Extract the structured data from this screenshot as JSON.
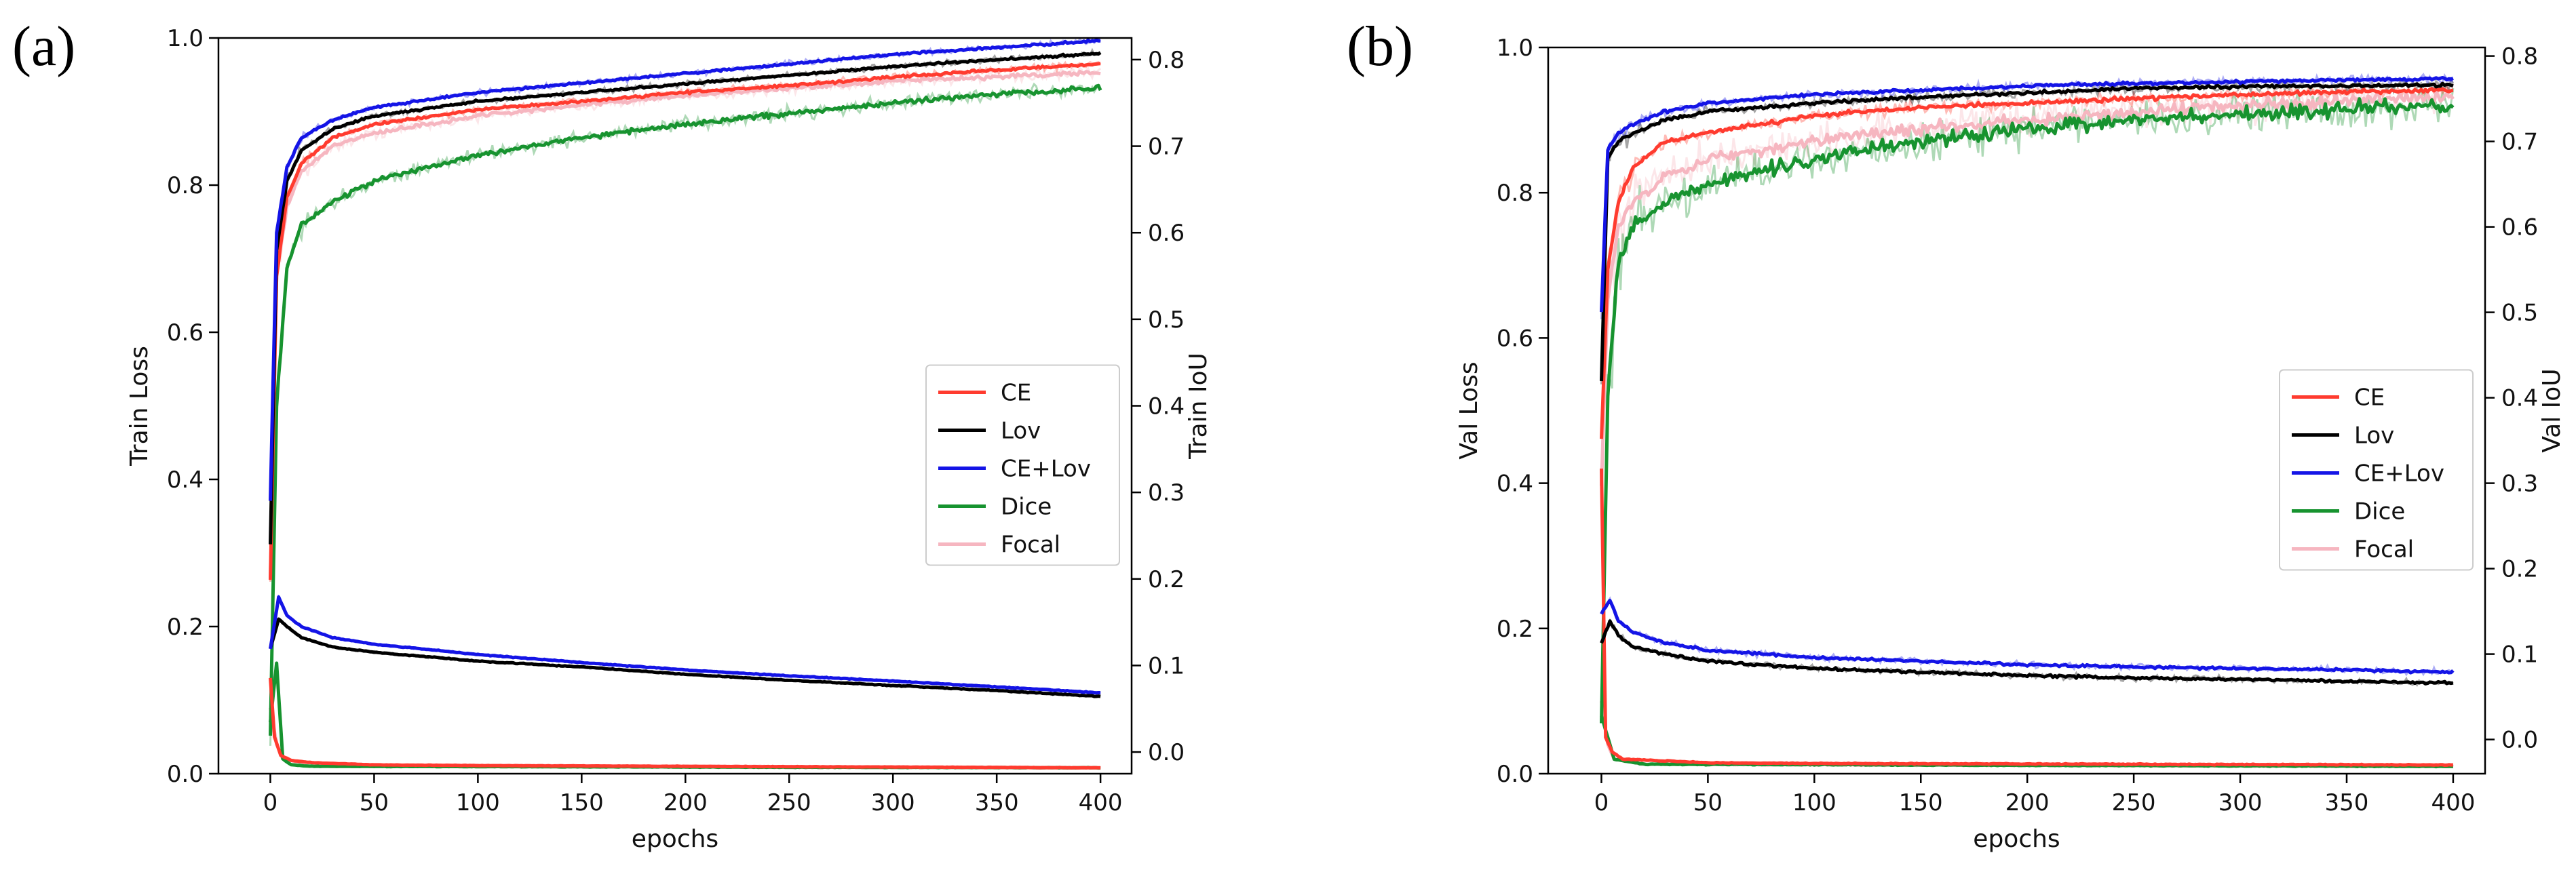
{
  "chart_data": [
    {
      "panel_label": "(a)",
      "type": "line",
      "xlabel": "epochs",
      "ylabel_left": "Train Loss",
      "ylabel_right": "Train IoU",
      "xlim": [
        -25,
        415
      ],
      "ylim_left": [
        0.0,
        1.0
      ],
      "ylim_right": [
        -0.025,
        0.825
      ],
      "xticks": [
        0,
        50,
        100,
        150,
        200,
        250,
        300,
        350,
        400
      ],
      "yticks_left": [
        "0.0",
        "0.2",
        "0.4",
        "0.6",
        "0.8",
        "1.0"
      ],
      "yticks_right": [
        "0.0",
        "0.1",
        "0.2",
        "0.3",
        "0.4",
        "0.5",
        "0.6",
        "0.7",
        "0.8"
      ],
      "legend": [
        "CE",
        "Lov",
        "CE+Lov",
        "Dice",
        "Focal"
      ],
      "legend_position": "center-right",
      "series": [
        {
          "name": "CE",
          "color": "#ff3b2f",
          "loss": [
            [
              0,
              0.13
            ],
            [
              2,
              0.05
            ],
            [
              5,
              0.025
            ],
            [
              10,
              0.018
            ],
            [
              20,
              0.015
            ],
            [
              50,
              0.012
            ],
            [
              100,
              0.011
            ],
            [
              200,
              0.01
            ],
            [
              300,
              0.009
            ],
            [
              400,
              0.008
            ]
          ],
          "iou": [
            [
              0,
              0.2
            ],
            [
              3,
              0.55
            ],
            [
              8,
              0.64
            ],
            [
              15,
              0.68
            ],
            [
              30,
              0.71
            ],
            [
              50,
              0.725
            ],
            [
              100,
              0.742
            ],
            [
              150,
              0.752
            ],
            [
              200,
              0.762
            ],
            [
              250,
              0.77
            ],
            [
              300,
              0.78
            ],
            [
              350,
              0.788
            ],
            [
              400,
              0.795
            ]
          ]
        },
        {
          "name": "Lov",
          "color": "#000000",
          "loss": [
            [
              0,
              0.17
            ],
            [
              4,
              0.21
            ],
            [
              8,
              0.2
            ],
            [
              15,
              0.185
            ],
            [
              30,
              0.172
            ],
            [
              50,
              0.165
            ],
            [
              100,
              0.153
            ],
            [
              150,
              0.145
            ],
            [
              200,
              0.135
            ],
            [
              250,
              0.127
            ],
            [
              300,
              0.12
            ],
            [
              350,
              0.113
            ],
            [
              400,
              0.105
            ]
          ],
          "iou": [
            [
              0,
              0.24
            ],
            [
              3,
              0.58
            ],
            [
              8,
              0.66
            ],
            [
              15,
              0.695
            ],
            [
              30,
              0.72
            ],
            [
              50,
              0.735
            ],
            [
              100,
              0.752
            ],
            [
              150,
              0.762
            ],
            [
              200,
              0.772
            ],
            [
              250,
              0.782
            ],
            [
              300,
              0.792
            ],
            [
              350,
              0.8
            ],
            [
              400,
              0.807
            ]
          ]
        },
        {
          "name": "CE+Lov",
          "color": "#1414e6",
          "loss": [
            [
              0,
              0.17
            ],
            [
              4,
              0.24
            ],
            [
              8,
              0.215
            ],
            [
              15,
              0.2
            ],
            [
              30,
              0.185
            ],
            [
              50,
              0.176
            ],
            [
              100,
              0.162
            ],
            [
              150,
              0.151
            ],
            [
              200,
              0.141
            ],
            [
              250,
              0.133
            ],
            [
              300,
              0.126
            ],
            [
              350,
              0.118
            ],
            [
              400,
              0.11
            ]
          ],
          "iou": [
            [
              0,
              0.29
            ],
            [
              3,
              0.6
            ],
            [
              8,
              0.675
            ],
            [
              15,
              0.71
            ],
            [
              30,
              0.73
            ],
            [
              50,
              0.745
            ],
            [
              100,
              0.762
            ],
            [
              150,
              0.773
            ],
            [
              200,
              0.784
            ],
            [
              250,
              0.795
            ],
            [
              300,
              0.806
            ],
            [
              350,
              0.814
            ],
            [
              400,
              0.822
            ]
          ]
        },
        {
          "name": "Dice",
          "color": "#17932f",
          "loss": [
            [
              0,
              0.07
            ],
            [
              3,
              0.15
            ],
            [
              6,
              0.02
            ],
            [
              10,
              0.012
            ],
            [
              20,
              0.01
            ],
            [
              400,
              0.008
            ]
          ],
          "iou": [
            [
              0,
              0.02
            ],
            [
              3,
              0.4
            ],
            [
              8,
              0.56
            ],
            [
              15,
              0.61
            ],
            [
              30,
              0.635
            ],
            [
              50,
              0.66
            ],
            [
              100,
              0.69
            ],
            [
              150,
              0.71
            ],
            [
              200,
              0.725
            ],
            [
              250,
              0.738
            ],
            [
              300,
              0.75
            ],
            [
              350,
              0.76
            ],
            [
              400,
              0.767
            ]
          ]
        },
        {
          "name": "Focal",
          "color": "#f6b6c0",
          "loss": [
            [
              0,
              0.09
            ],
            [
              3,
              0.04
            ],
            [
              6,
              0.02
            ],
            [
              20,
              0.012
            ],
            [
              400,
              0.008
            ]
          ],
          "iou": [
            [
              0,
              0.2
            ],
            [
              3,
              0.55
            ],
            [
              8,
              0.63
            ],
            [
              15,
              0.67
            ],
            [
              30,
              0.7
            ],
            [
              50,
              0.715
            ],
            [
              100,
              0.735
            ],
            [
              150,
              0.748
            ],
            [
              200,
              0.758
            ],
            [
              250,
              0.767
            ],
            [
              300,
              0.775
            ],
            [
              350,
              0.78
            ],
            [
              400,
              0.785
            ]
          ]
        }
      ]
    },
    {
      "panel_label": "(b)",
      "type": "line",
      "xlabel": "epochs",
      "ylabel_left": "Val Loss",
      "ylabel_right": "Val IoU",
      "xlim": [
        -25,
        415
      ],
      "ylim_left": [
        0.0,
        1.0
      ],
      "ylim_right": [
        -0.04,
        0.81
      ],
      "xticks": [
        0,
        50,
        100,
        150,
        200,
        250,
        300,
        350,
        400
      ],
      "yticks_left": [
        "0.0",
        "0.2",
        "0.4",
        "0.6",
        "0.8",
        "1.0"
      ],
      "yticks_right": [
        "0.0",
        "0.1",
        "0.2",
        "0.3",
        "0.4",
        "0.5",
        "0.6",
        "0.7",
        "0.8"
      ],
      "legend": [
        "CE",
        "Lov",
        "CE+Lov",
        "Dice",
        "Focal"
      ],
      "legend_position": "center-right",
      "series": [
        {
          "name": "CE",
          "color": "#ff3b2f",
          "loss": [
            [
              0,
              0.42
            ],
            [
              2,
              0.05
            ],
            [
              5,
              0.03
            ],
            [
              10,
              0.02
            ],
            [
              50,
              0.015
            ],
            [
              100,
              0.014
            ],
            [
              400,
              0.012
            ]
          ],
          "iou": [
            [
              0,
              0.35
            ],
            [
              3,
              0.55
            ],
            [
              8,
              0.63
            ],
            [
              15,
              0.67
            ],
            [
              30,
              0.7
            ],
            [
              50,
              0.71
            ],
            [
              100,
              0.73
            ],
            [
              150,
              0.74
            ],
            [
              200,
              0.745
            ],
            [
              250,
              0.75
            ],
            [
              300,
              0.755
            ],
            [
              350,
              0.758
            ],
            [
              400,
              0.76
            ]
          ]
        },
        {
          "name": "Lov",
          "color": "#000000",
          "loss": [
            [
              0,
              0.18
            ],
            [
              4,
              0.21
            ],
            [
              8,
              0.19
            ],
            [
              15,
              0.175
            ],
            [
              30,
              0.165
            ],
            [
              50,
              0.155
            ],
            [
              100,
              0.145
            ],
            [
              150,
              0.14
            ],
            [
              200,
              0.135
            ],
            [
              250,
              0.132
            ],
            [
              300,
              0.13
            ],
            [
              350,
              0.127
            ],
            [
              400,
              0.125
            ]
          ],
          "iou": [
            [
              0,
              0.42
            ],
            [
              3,
              0.68
            ],
            [
              8,
              0.7
            ],
            [
              15,
              0.71
            ],
            [
              30,
              0.725
            ],
            [
              50,
              0.735
            ],
            [
              100,
              0.745
            ],
            [
              150,
              0.752
            ],
            [
              200,
              0.757
            ],
            [
              250,
              0.762
            ],
            [
              300,
              0.764
            ],
            [
              350,
              0.765
            ],
            [
              400,
              0.766
            ]
          ]
        },
        {
          "name": "CE+Lov",
          "color": "#1414e6",
          "loss": [
            [
              0,
              0.22
            ],
            [
              4,
              0.24
            ],
            [
              8,
              0.21
            ],
            [
              15,
              0.195
            ],
            [
              30,
              0.18
            ],
            [
              50,
              0.17
            ],
            [
              100,
              0.16
            ],
            [
              150,
              0.155
            ],
            [
              200,
              0.15
            ],
            [
              250,
              0.147
            ],
            [
              300,
              0.145
            ],
            [
              350,
              0.143
            ],
            [
              400,
              0.14
            ]
          ],
          "iou": [
            [
              0,
              0.5
            ],
            [
              3,
              0.69
            ],
            [
              8,
              0.71
            ],
            [
              15,
              0.72
            ],
            [
              30,
              0.735
            ],
            [
              50,
              0.745
            ],
            [
              100,
              0.755
            ],
            [
              150,
              0.76
            ],
            [
              200,
              0.765
            ],
            [
              250,
              0.768
            ],
            [
              300,
              0.77
            ],
            [
              350,
              0.772
            ],
            [
              400,
              0.773
            ]
          ]
        },
        {
          "name": "Dice",
          "color": "#17932f",
          "loss": [
            [
              0,
              0.08
            ],
            [
              3,
              0.05
            ],
            [
              6,
              0.02
            ],
            [
              20,
              0.013
            ],
            [
              400,
              0.01
            ]
          ],
          "iou": [
            [
              0,
              0.02
            ],
            [
              3,
              0.4
            ],
            [
              8,
              0.56
            ],
            [
              15,
              0.6
            ],
            [
              30,
              0.63
            ],
            [
              50,
              0.65
            ],
            [
              100,
              0.68
            ],
            [
              150,
              0.7
            ],
            [
              200,
              0.715
            ],
            [
              250,
              0.725
            ],
            [
              300,
              0.732
            ],
            [
              350,
              0.738
            ],
            [
              400,
              0.742
            ]
          ]
        },
        {
          "name": "Focal",
          "color": "#f6b6c0",
          "loss": [
            [
              0,
              0.1
            ],
            [
              3,
              0.04
            ],
            [
              6,
              0.02
            ],
            [
              20,
              0.013
            ],
            [
              400,
              0.01
            ]
          ],
          "iou": [
            [
              0,
              0.3
            ],
            [
              3,
              0.52
            ],
            [
              8,
              0.6
            ],
            [
              15,
              0.63
            ],
            [
              30,
              0.66
            ],
            [
              50,
              0.68
            ],
            [
              100,
              0.7
            ],
            [
              150,
              0.715
            ],
            [
              200,
              0.725
            ],
            [
              250,
              0.735
            ],
            [
              300,
              0.742
            ],
            [
              350,
              0.748
            ],
            [
              400,
              0.752
            ]
          ]
        }
      ]
    }
  ]
}
